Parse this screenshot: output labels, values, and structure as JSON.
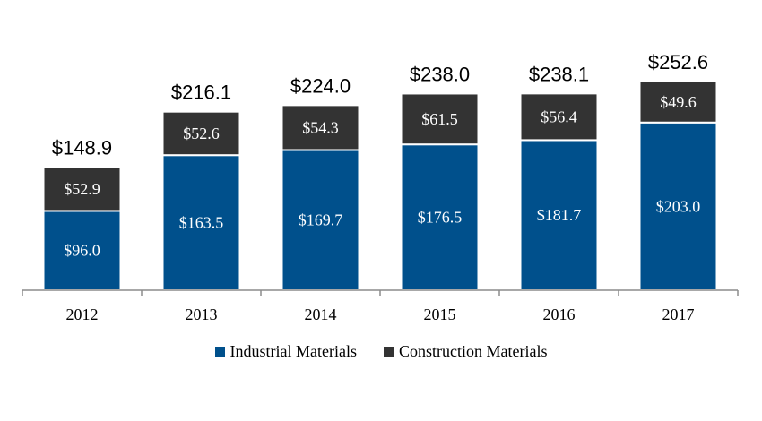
{
  "chart_data": {
    "type": "bar",
    "stacked": true,
    "categories": [
      "2012",
      "2013",
      "2014",
      "2015",
      "2016",
      "2017"
    ],
    "series": [
      {
        "name": "Industrial Materials",
        "color": "#00508C",
        "values": [
          96.0,
          163.5,
          169.7,
          176.5,
          181.7,
          203.0
        ],
        "labels": [
          "$96.0",
          "$163.5",
          "$169.7",
          "$176.5",
          "$181.7",
          "$203.0"
        ]
      },
      {
        "name": "Construction Materials",
        "color": "#333333",
        "values": [
          52.9,
          52.6,
          54.3,
          61.5,
          56.4,
          49.6
        ],
        "labels": [
          "$52.9",
          "$52.6",
          "$54.3",
          "$61.5",
          "$56.4",
          "$49.6"
        ]
      }
    ],
    "totals": [
      148.9,
      216.1,
      224.0,
      238.0,
      238.1,
      252.6
    ],
    "total_labels": [
      "$148.9",
      "$216.1",
      "$224.0",
      "$238.0",
      "$238.1",
      "$252.6"
    ],
    "ylim": [
      0,
      252.6
    ],
    "grid": false,
    "legend_position": "bottom",
    "title": "",
    "xlabel": "",
    "ylabel": ""
  }
}
